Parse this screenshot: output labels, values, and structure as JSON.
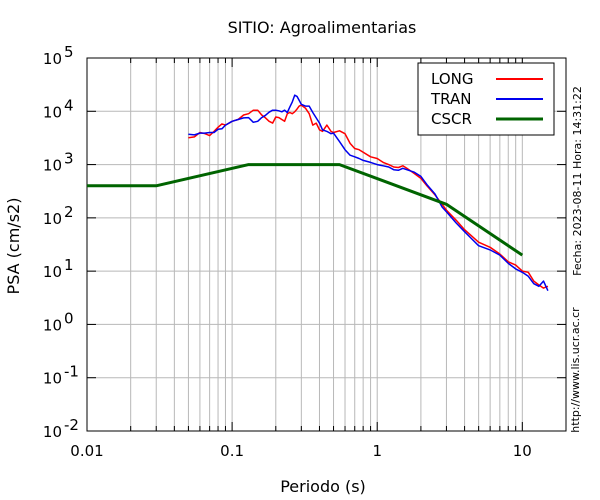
{
  "chart_data": {
    "type": "line",
    "title": "SITIO: Agroalimentarias",
    "xlabel": "Periodo (s)",
    "ylabel": "PSA (cm/s2)",
    "xscale": "log",
    "yscale": "log",
    "xlim": [
      0.01,
      20
    ],
    "ylim": [
      0.01,
      100000
    ],
    "grid": true,
    "legend_placement": "top-right",
    "x_ticks": [
      {
        "value": 0.01,
        "label": "0.01"
      },
      {
        "value": 0.1,
        "label": "0.1"
      },
      {
        "value": 1,
        "label": "1"
      },
      {
        "value": 10,
        "label": "10"
      }
    ],
    "y_ticks": [
      {
        "value": 0.01,
        "base": "10",
        "exp": "-2"
      },
      {
        "value": 0.1,
        "base": "10",
        "exp": "-1"
      },
      {
        "value": 1,
        "base": "10",
        "exp": "0"
      },
      {
        "value": 10,
        "base": "10",
        "exp": "1"
      },
      {
        "value": 100,
        "base": "10",
        "exp": "2"
      },
      {
        "value": 1000,
        "base": "10",
        "exp": "3"
      },
      {
        "value": 10000,
        "base": "10",
        "exp": "4"
      },
      {
        "value": 100000,
        "base": "10",
        "exp": "5"
      }
    ],
    "series": [
      {
        "name": "LONG",
        "color": "#ff0000",
        "width": 1.5,
        "x": [
          0.05,
          0.055,
          0.06,
          0.065,
          0.07,
          0.075,
          0.08,
          0.085,
          0.09,
          0.1,
          0.11,
          0.12,
          0.13,
          0.14,
          0.15,
          0.16,
          0.17,
          0.18,
          0.19,
          0.2,
          0.21,
          0.22,
          0.23,
          0.24,
          0.25,
          0.26,
          0.27,
          0.28,
          0.29,
          0.3,
          0.32,
          0.34,
          0.36,
          0.38,
          0.4,
          0.42,
          0.45,
          0.48,
          0.5,
          0.55,
          0.6,
          0.65,
          0.7,
          0.75,
          0.8,
          0.9,
          1.0,
          1.1,
          1.2,
          1.3,
          1.4,
          1.5,
          1.6,
          1.8,
          2.0,
          2.2,
          2.5,
          2.8,
          3.0,
          3.5,
          4.0,
          4.5,
          5.0,
          6.0,
          7.0,
          8.0,
          9.0,
          10.0,
          11.0,
          12.0,
          13.0,
          14.0,
          15.0
        ],
        "y": [
          3200,
          3300,
          4000,
          3800,
          3500,
          4200,
          5000,
          5800,
          5500,
          6500,
          7000,
          8500,
          9000,
          10500,
          10500,
          8500,
          7500,
          6500,
          6000,
          7800,
          7600,
          7000,
          6500,
          9000,
          9500,
          9000,
          9800,
          11000,
          12500,
          13000,
          11500,
          9000,
          5500,
          6000,
          4500,
          4200,
          5500,
          4200,
          4000,
          4300,
          3800,
          2500,
          2000,
          1900,
          1700,
          1400,
          1300,
          1100,
          1000,
          900,
          880,
          950,
          850,
          680,
          550,
          400,
          270,
          180,
          140,
          90,
          60,
          45,
          35,
          28,
          21,
          15,
          13,
          10,
          9.5,
          6.5,
          5.5,
          4.8,
          5.2
        ]
      },
      {
        "name": "TRAN",
        "color": "#0000ee",
        "width": 1.5,
        "x": [
          0.05,
          0.055,
          0.06,
          0.065,
          0.07,
          0.075,
          0.08,
          0.085,
          0.09,
          0.1,
          0.11,
          0.12,
          0.13,
          0.14,
          0.15,
          0.16,
          0.17,
          0.18,
          0.19,
          0.2,
          0.21,
          0.22,
          0.23,
          0.24,
          0.25,
          0.26,
          0.27,
          0.28,
          0.29,
          0.3,
          0.32,
          0.34,
          0.36,
          0.38,
          0.4,
          0.42,
          0.45,
          0.48,
          0.5,
          0.55,
          0.6,
          0.65,
          0.7,
          0.75,
          0.8,
          0.9,
          1.0,
          1.1,
          1.2,
          1.3,
          1.4,
          1.5,
          1.6,
          1.8,
          2.0,
          2.2,
          2.5,
          2.8,
          3.0,
          3.5,
          4.0,
          4.5,
          5.0,
          6.0,
          7.0,
          8.0,
          9.0,
          10.0,
          11.0,
          12.0,
          13.0,
          14.0,
          15.0
        ],
        "y": [
          3700,
          3600,
          3900,
          3900,
          4000,
          4000,
          4600,
          4700,
          5500,
          6500,
          7000,
          7500,
          7600,
          6200,
          6500,
          7600,
          8400,
          9600,
          10500,
          10500,
          10200,
          9800,
          10500,
          9500,
          12000,
          15000,
          20000,
          19000,
          16000,
          13500,
          12500,
          12500,
          9500,
          7500,
          6000,
          4500,
          4200,
          3800,
          3900,
          2700,
          1900,
          1500,
          1400,
          1300,
          1200,
          1100,
          1000,
          950,
          900,
          800,
          780,
          850,
          800,
          720,
          600,
          420,
          280,
          160,
          130,
          80,
          55,
          40,
          30,
          25,
          20,
          14,
          11,
          9.5,
          8.0,
          5.8,
          5.2,
          6.5,
          4.3
        ]
      },
      {
        "name": "CSCR",
        "color": "#006400",
        "width": 3,
        "x": [
          0.01,
          0.03,
          0.13,
          0.55,
          3.0,
          10.0
        ],
        "y": [
          400,
          400,
          1000,
          1000,
          180,
          20
        ]
      }
    ]
  },
  "side_text": {
    "datetime": "Fecha: 2023-08-11  Hora: 14:31:22",
    "url": "http://www.lis.ucr.ac.cr"
  }
}
